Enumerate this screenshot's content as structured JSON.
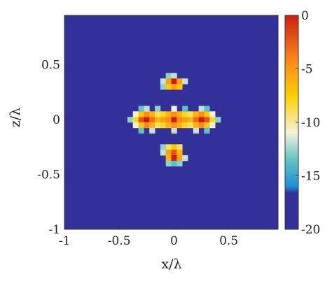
{
  "chart_data": {
    "type": "heatmap",
    "title": "",
    "xlabel": "x/λ",
    "ylabel": "z/λ",
    "xlim": [
      -1,
      0.95
    ],
    "ylim": [
      -1,
      0.95
    ],
    "x_ticks": [
      {
        "value": -1,
        "label": "-1"
      },
      {
        "value": -0.5,
        "label": "-0.5"
      },
      {
        "value": 0,
        "label": "0"
      },
      {
        "value": 0.5,
        "label": "0.5"
      }
    ],
    "y_ticks": [
      {
        "value": 0.5,
        "label": "0.5"
      },
      {
        "value": 0,
        "label": "0"
      },
      {
        "value": -0.5,
        "label": "-0.5"
      },
      {
        "value": -1,
        "label": "-1"
      }
    ],
    "colorbar": {
      "range": [
        -20,
        0
      ],
      "ticks": [
        {
          "value": 0,
          "label": "0"
        },
        {
          "value": -5,
          "label": "-5"
        },
        {
          "value": -10,
          "label": "-10"
        },
        {
          "value": -15,
          "label": "-15"
        },
        {
          "value": -20,
          "label": "-20"
        }
      ]
    },
    "background_value": -20,
    "cell_size": 0.05,
    "cells": [
      {
        "x": -0.4,
        "z": 0.0,
        "v": -13
      },
      {
        "x": -0.35,
        "z": 0.0,
        "v": -8
      },
      {
        "x": -0.3,
        "z": 0.0,
        "v": -2
      },
      {
        "x": -0.25,
        "z": 0.0,
        "v": 0
      },
      {
        "x": -0.2,
        "z": 0.0,
        "v": -3
      },
      {
        "x": -0.15,
        "z": 0.0,
        "v": -6
      },
      {
        "x": -0.1,
        "z": 0.0,
        "v": -5
      },
      {
        "x": -0.05,
        "z": 0.0,
        "v": -4
      },
      {
        "x": 0.0,
        "z": 0.0,
        "v": 0
      },
      {
        "x": 0.05,
        "z": 0.0,
        "v": -4
      },
      {
        "x": 0.1,
        "z": 0.0,
        "v": -5
      },
      {
        "x": 0.15,
        "z": 0.0,
        "v": -6
      },
      {
        "x": 0.2,
        "z": 0.0,
        "v": -3
      },
      {
        "x": 0.25,
        "z": 0.0,
        "v": 0
      },
      {
        "x": 0.3,
        "z": 0.0,
        "v": -2
      },
      {
        "x": 0.35,
        "z": 0.0,
        "v": -8
      },
      {
        "x": 0.4,
        "z": 0.0,
        "v": -13
      },
      {
        "x": -0.35,
        "z": 0.05,
        "v": -11
      },
      {
        "x": -0.3,
        "z": 0.05,
        "v": -7
      },
      {
        "x": -0.25,
        "z": 0.05,
        "v": -4
      },
      {
        "x": -0.2,
        "z": 0.05,
        "v": -6
      },
      {
        "x": -0.15,
        "z": 0.05,
        "v": -9
      },
      {
        "x": -0.1,
        "z": 0.05,
        "v": -8
      },
      {
        "x": -0.05,
        "z": 0.05,
        "v": -6
      },
      {
        "x": 0.0,
        "z": 0.05,
        "v": -4
      },
      {
        "x": 0.05,
        "z": 0.05,
        "v": -6
      },
      {
        "x": 0.1,
        "z": 0.05,
        "v": -8
      },
      {
        "x": 0.15,
        "z": 0.05,
        "v": -9
      },
      {
        "x": 0.2,
        "z": 0.05,
        "v": -6
      },
      {
        "x": 0.25,
        "z": 0.05,
        "v": -4
      },
      {
        "x": 0.3,
        "z": 0.05,
        "v": -7
      },
      {
        "x": 0.35,
        "z": 0.05,
        "v": -11
      },
      {
        "x": -0.35,
        "z": -0.05,
        "v": -11
      },
      {
        "x": -0.3,
        "z": -0.05,
        "v": -7
      },
      {
        "x": -0.25,
        "z": -0.05,
        "v": -4
      },
      {
        "x": -0.2,
        "z": -0.05,
        "v": -6
      },
      {
        "x": -0.15,
        "z": -0.05,
        "v": -9
      },
      {
        "x": -0.1,
        "z": -0.05,
        "v": -8
      },
      {
        "x": -0.05,
        "z": -0.05,
        "v": -6
      },
      {
        "x": 0.0,
        "z": -0.05,
        "v": -4
      },
      {
        "x": 0.05,
        "z": -0.05,
        "v": -6
      },
      {
        "x": 0.1,
        "z": -0.05,
        "v": -8
      },
      {
        "x": 0.15,
        "z": -0.05,
        "v": -9
      },
      {
        "x": 0.2,
        "z": -0.05,
        "v": -6
      },
      {
        "x": 0.25,
        "z": -0.05,
        "v": -4
      },
      {
        "x": 0.3,
        "z": -0.05,
        "v": -7
      },
      {
        "x": 0.35,
        "z": -0.05,
        "v": -11
      },
      {
        "x": -0.3,
        "z": 0.1,
        "v": -14
      },
      {
        "x": -0.25,
        "z": 0.1,
        "v": -12
      },
      {
        "x": -0.15,
        "z": 0.1,
        "v": -13
      },
      {
        "x": 0.0,
        "z": 0.1,
        "v": -11
      },
      {
        "x": 0.1,
        "z": 0.1,
        "v": -14
      },
      {
        "x": 0.25,
        "z": 0.1,
        "v": -12
      },
      {
        "x": 0.3,
        "z": 0.1,
        "v": -14
      },
      {
        "x": -0.3,
        "z": -0.1,
        "v": -14
      },
      {
        "x": -0.2,
        "z": -0.1,
        "v": -12
      },
      {
        "x": 0.0,
        "z": -0.1,
        "v": -12
      },
      {
        "x": 0.2,
        "z": -0.1,
        "v": -12
      },
      {
        "x": 0.3,
        "z": -0.1,
        "v": -14
      },
      {
        "x": -0.05,
        "z": 0.4,
        "v": -13
      },
      {
        "x": 0.0,
        "z": 0.4,
        "v": -12
      },
      {
        "x": -0.1,
        "z": 0.35,
        "v": -12
      },
      {
        "x": -0.05,
        "z": 0.35,
        "v": -5
      },
      {
        "x": 0.0,
        "z": 0.35,
        "v": 0
      },
      {
        "x": 0.05,
        "z": 0.35,
        "v": -5
      },
      {
        "x": 0.1,
        "z": 0.35,
        "v": -12
      },
      {
        "x": -0.1,
        "z": 0.3,
        "v": -13
      },
      {
        "x": -0.05,
        "z": 0.3,
        "v": -7
      },
      {
        "x": 0.0,
        "z": 0.3,
        "v": -5
      },
      {
        "x": 0.05,
        "z": 0.3,
        "v": -7
      },
      {
        "x": -0.1,
        "z": -0.25,
        "v": -13
      },
      {
        "x": -0.05,
        "z": -0.25,
        "v": -9
      },
      {
        "x": 0.0,
        "z": -0.25,
        "v": -7
      },
      {
        "x": 0.05,
        "z": -0.25,
        "v": -9
      },
      {
        "x": -0.1,
        "z": -0.3,
        "v": -12
      },
      {
        "x": -0.05,
        "z": -0.3,
        "v": -5
      },
      {
        "x": 0.0,
        "z": -0.3,
        "v": -2
      },
      {
        "x": 0.05,
        "z": -0.3,
        "v": -6
      },
      {
        "x": -0.05,
        "z": -0.35,
        "v": -6
      },
      {
        "x": 0.0,
        "z": -0.35,
        "v": 0
      },
      {
        "x": 0.05,
        "z": -0.35,
        "v": -5
      },
      {
        "x": 0.1,
        "z": -0.35,
        "v": -12
      },
      {
        "x": -0.05,
        "z": -0.4,
        "v": -13
      },
      {
        "x": 0.0,
        "z": -0.4,
        "v": -14
      },
      {
        "x": 0.05,
        "z": -0.4,
        "v": -13
      }
    ]
  }
}
